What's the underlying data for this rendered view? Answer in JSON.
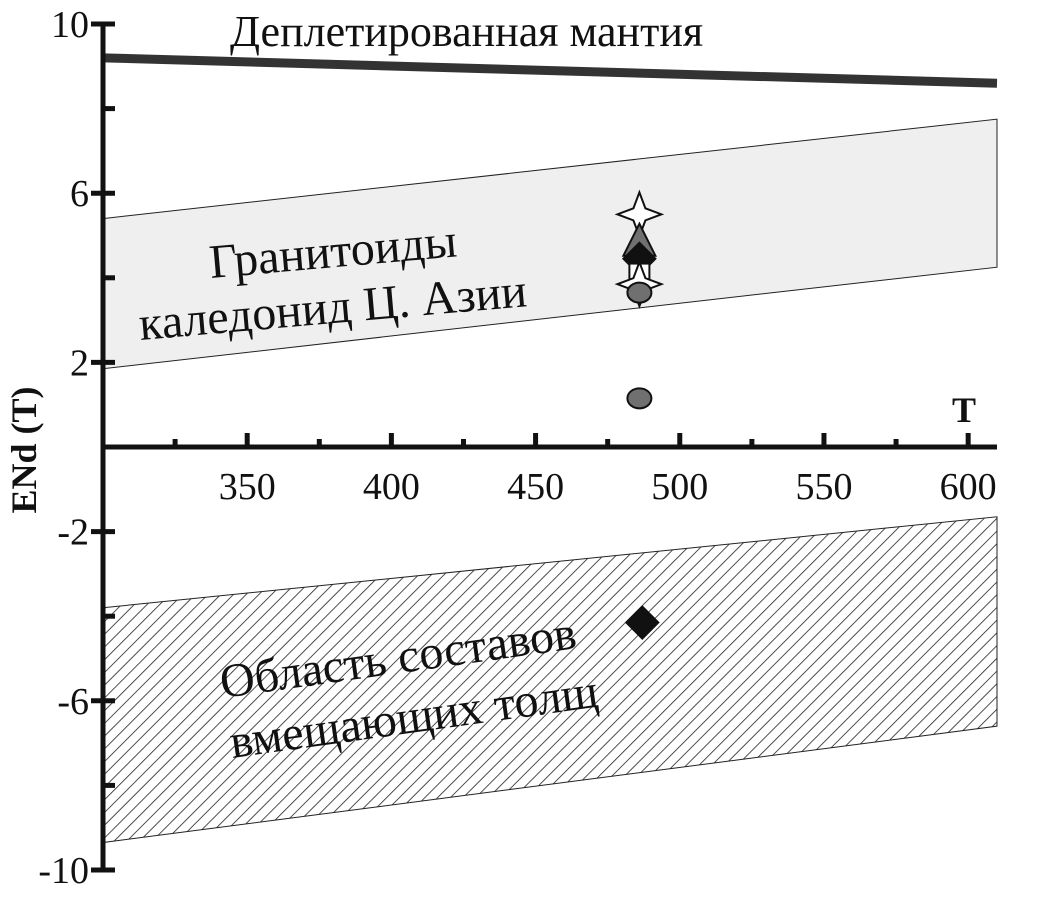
{
  "chart_data": {
    "type": "scatter",
    "title": "",
    "xlabel": "T",
    "ylabel": "ENd (T)",
    "xlim": [
      300,
      610
    ],
    "ylim": [
      -10,
      10
    ],
    "x_ticks": [
      350,
      400,
      450,
      500,
      550,
      600
    ],
    "y_ticks": [
      10,
      6,
      2,
      -2,
      -6,
      -10
    ],
    "y_tick_labels": [
      "10",
      "6",
      "2",
      "-2",
      "-6",
      "-10"
    ],
    "x_tick_labels": [
      "350",
      "400",
      "450",
      "500",
      "550",
      "600"
    ],
    "depleted_mantle": {
      "label": "Деплетированная мантия",
      "x": [
        300,
        610
      ],
      "y": [
        9.2,
        8.6
      ]
    },
    "granitoid_band": {
      "label_line1": "Гранитоиды",
      "label_line2": "каледонид Ц. Азии",
      "x": [
        300,
        610
      ],
      "upper": [
        5.4,
        7.75
      ],
      "lower": [
        1.85,
        4.25
      ],
      "fill": "#efefef"
    },
    "host_rock_band": {
      "label_line1": "Область составов",
      "label_line2": "вмещающих толщ",
      "x": [
        300,
        610
      ],
      "upper": [
        -3.8,
        -1.65
      ],
      "lower": [
        -9.35,
        -6.6
      ]
    },
    "points": [
      {
        "x": 486,
        "y": 5.5,
        "symbol": "star4",
        "fill": "#ffffff"
      },
      {
        "x": 486,
        "y": 4.9,
        "symbol": "triangle",
        "fill": "#707070"
      },
      {
        "x": 486,
        "y": 4.45,
        "symbol": "diamond",
        "fill": "#111111"
      },
      {
        "x": 486,
        "y": 4.1,
        "symbol": "square",
        "fill": "#ffffff"
      },
      {
        "x": 486,
        "y": 3.85,
        "symbol": "star4",
        "fill": "#ffffff"
      },
      {
        "x": 486,
        "y": 3.65,
        "symbol": "circle",
        "fill": "#707070"
      },
      {
        "x": 486,
        "y": 1.15,
        "symbol": "circle",
        "fill": "#707070"
      },
      {
        "x": 487,
        "y": -4.15,
        "symbol": "diamond",
        "fill": "#111111"
      }
    ]
  }
}
